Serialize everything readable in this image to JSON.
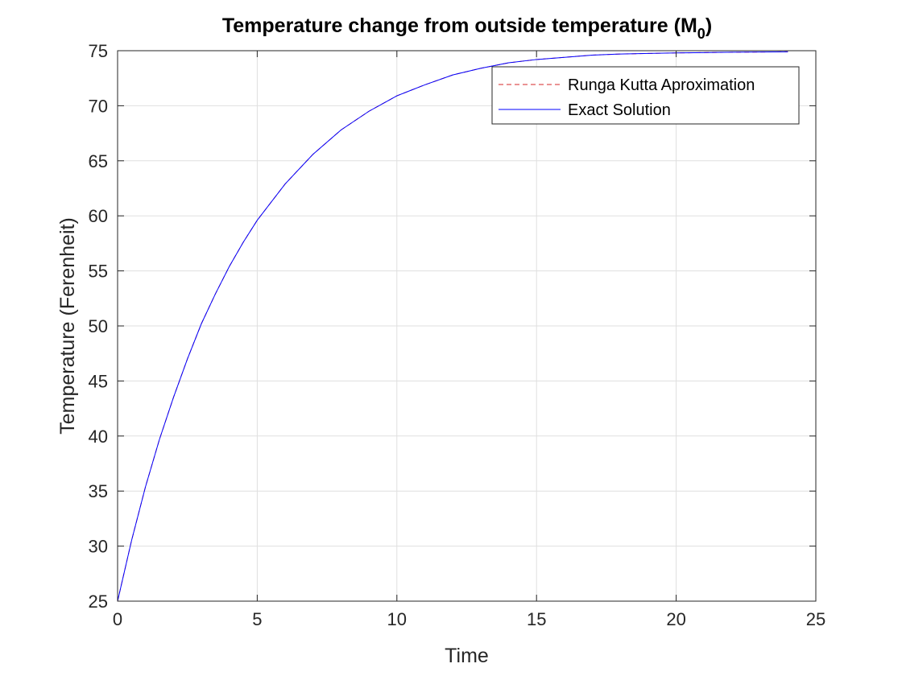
{
  "chart_data": {
    "type": "line",
    "title": "Temperature change from outside temperature (M",
    "title_subscript": "0",
    "title_suffix": ")",
    "xlabel": "Time",
    "ylabel": "Temperature (Ferenheit)",
    "xlim": [
      0,
      25
    ],
    "ylim": [
      25,
      75
    ],
    "x_ticks": [
      0,
      5,
      10,
      15,
      20,
      25
    ],
    "y_ticks": [
      25,
      30,
      35,
      40,
      45,
      50,
      55,
      60,
      65,
      70,
      75
    ],
    "grid": true,
    "legend_position": "top-right",
    "series": [
      {
        "name": "Runga Kutta Aproximation",
        "color": "#d62728",
        "style": "dashed",
        "x": [
          0,
          0.5,
          1,
          1.5,
          2,
          2.5,
          3,
          3.5,
          4,
          4.5,
          5,
          6,
          7,
          8,
          9,
          10,
          11,
          12,
          13,
          14,
          15,
          16,
          17,
          18,
          19,
          20,
          21,
          22,
          23,
          24
        ],
        "y": [
          25,
          30.5,
          35.4,
          39.7,
          43.5,
          47.0,
          50.2,
          52.9,
          55.4,
          57.6,
          59.6,
          62.9,
          65.6,
          67.8,
          69.5,
          70.9,
          71.9,
          72.8,
          73.4,
          73.9,
          74.2,
          74.4,
          74.6,
          74.7,
          74.75,
          74.8,
          74.83,
          74.86,
          74.88,
          74.9
        ]
      },
      {
        "name": "Exact Solution",
        "color": "#0000ff",
        "style": "solid",
        "x": [
          0,
          0.5,
          1,
          1.5,
          2,
          2.5,
          3,
          3.5,
          4,
          4.5,
          5,
          6,
          7,
          8,
          9,
          10,
          11,
          12,
          13,
          14,
          15,
          16,
          17,
          18,
          19,
          20,
          21,
          22,
          23,
          24
        ],
        "y": [
          25,
          30.5,
          35.4,
          39.7,
          43.5,
          47.0,
          50.2,
          52.9,
          55.4,
          57.6,
          59.6,
          62.9,
          65.6,
          67.8,
          69.5,
          70.9,
          71.9,
          72.8,
          73.4,
          73.9,
          74.2,
          74.4,
          74.6,
          74.7,
          74.75,
          74.8,
          74.83,
          74.86,
          74.88,
          74.9
        ]
      }
    ]
  }
}
